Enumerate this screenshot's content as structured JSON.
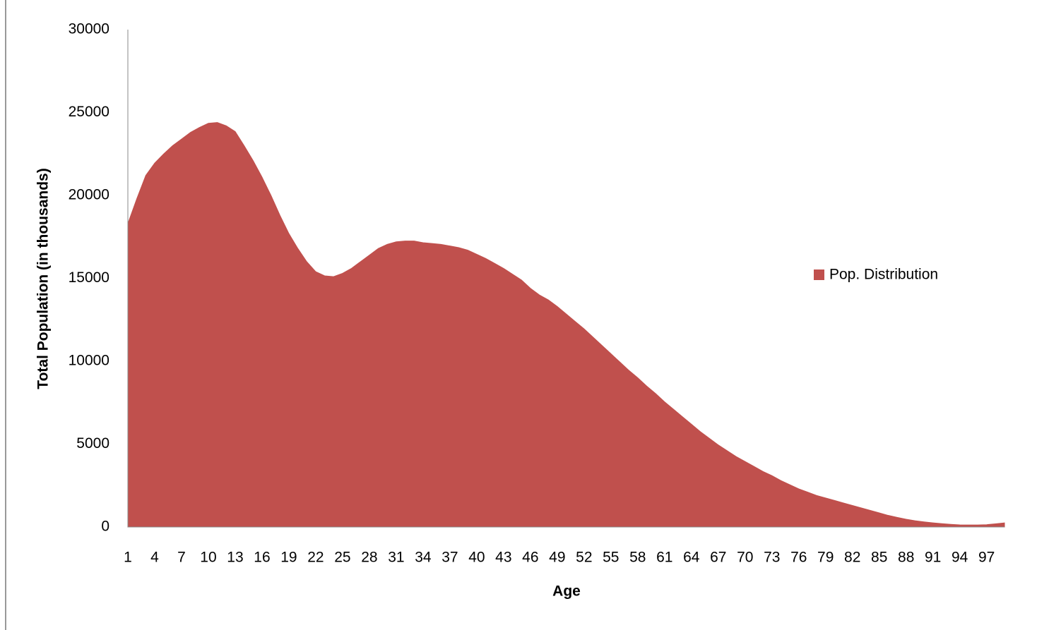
{
  "chart_data": {
    "type": "area",
    "y_label": "Total Population (in thousands)",
    "x_label": "Age",
    "categories": [
      1,
      null,
      null,
      4,
      null,
      null,
      7,
      null,
      null,
      10,
      null,
      null,
      13,
      null,
      null,
      16,
      null,
      null,
      19,
      null,
      null,
      22,
      null,
      null,
      25,
      null,
      null,
      28,
      null,
      null,
      31,
      null,
      null,
      34,
      null,
      null,
      37,
      null,
      null,
      40,
      null,
      null,
      43,
      null,
      null,
      46,
      null,
      null,
      49,
      null,
      null,
      52,
      null,
      null,
      55,
      null,
      null,
      58,
      null,
      null,
      61,
      null,
      null,
      64,
      null,
      null,
      67,
      null,
      null,
      70,
      null,
      null,
      73,
      null,
      null,
      76,
      null,
      null,
      79,
      null,
      null,
      82,
      null,
      null,
      85,
      null,
      null,
      88,
      null,
      null,
      91,
      null,
      null,
      94,
      null,
      null,
      97,
      null,
      null
    ],
    "series": [
      {
        "name": "Pop. Distribution",
        "color": "#c0504d",
        "values": [
          18300,
          19800,
          21200,
          21950,
          22500,
          23000,
          23400,
          23800,
          24100,
          24350,
          24400,
          24200,
          23850,
          23000,
          22100,
          21100,
          20000,
          18800,
          17700,
          16800,
          16000,
          15400,
          15150,
          15100,
          15300,
          15600,
          16000,
          16400,
          16800,
          17050,
          17200,
          17250,
          17250,
          17150,
          17100,
          17050,
          16950,
          16850,
          16700,
          16450,
          16200,
          15900,
          15600,
          15250,
          14900,
          14400,
          14000,
          13700,
          13300,
          12850,
          12400,
          11950,
          11450,
          10950,
          10450,
          9950,
          9450,
          9000,
          8500,
          8050,
          7550,
          7100,
          6650,
          6200,
          5750,
          5350,
          4950,
          4600,
          4250,
          3950,
          3650,
          3350,
          3100,
          2800,
          2550,
          2300,
          2100,
          1900,
          1750,
          1600,
          1450,
          1300,
          1150,
          1000,
          850,
          700,
          580,
          470,
          380,
          310,
          250,
          200,
          160,
          130,
          120,
          120,
          140,
          190,
          250
        ]
      }
    ],
    "ylim": [
      0,
      30000
    ],
    "yticks": [
      0,
      5000,
      10000,
      15000,
      20000,
      25000,
      30000
    ],
    "grid": false,
    "legend": "right"
  }
}
